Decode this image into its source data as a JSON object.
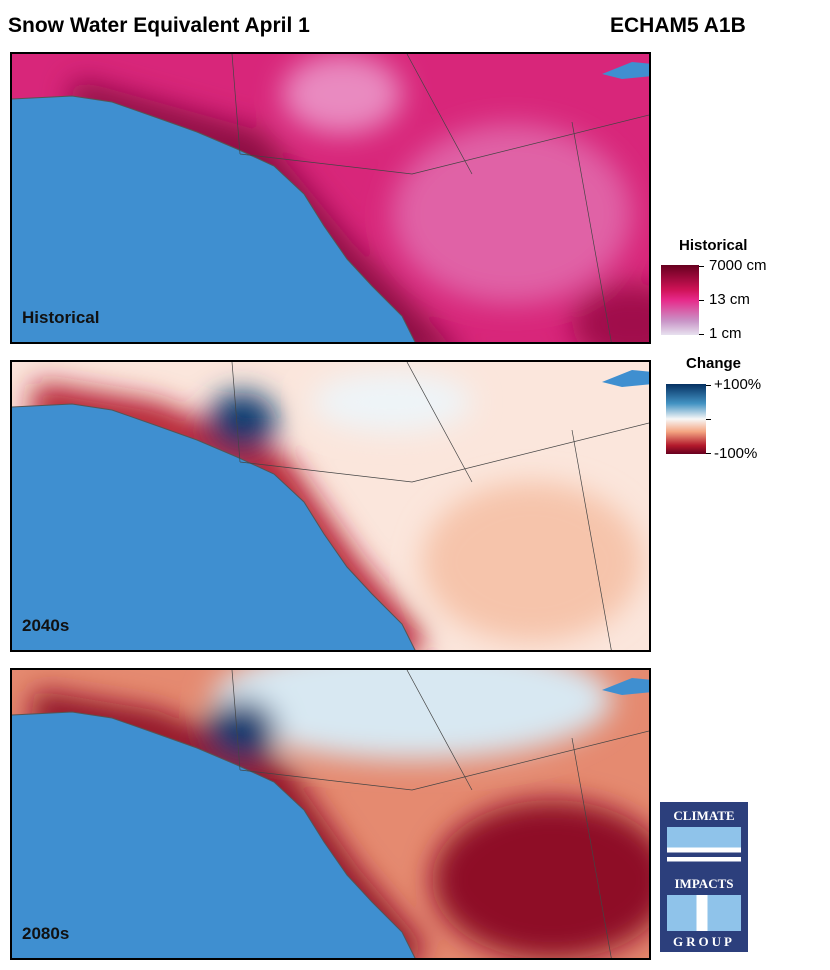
{
  "header": {
    "title": "Snow Water Equivalent April 1",
    "scenario": "ECHAM5 A1B"
  },
  "panels": [
    {
      "label": "Historical"
    },
    {
      "label": "2040s"
    },
    {
      "label": "2080s"
    }
  ],
  "legend_historical": {
    "title": "Historical",
    "ticks": [
      "7000 cm",
      "13 cm",
      "1 cm"
    ],
    "colors": [
      "#67001f",
      "#e7298a",
      "#e7e1ef"
    ]
  },
  "legend_change": {
    "title": "Change",
    "ticks": [
      "+100%",
      "-100%"
    ],
    "colors": [
      "#053061",
      "#f7f7f7",
      "#67001f"
    ]
  },
  "logo": {
    "line1": "CLIMATE",
    "line2": "IMPACTS",
    "line3": "GROUP"
  },
  "colors": {
    "ocean": "#3f8fd0"
  }
}
